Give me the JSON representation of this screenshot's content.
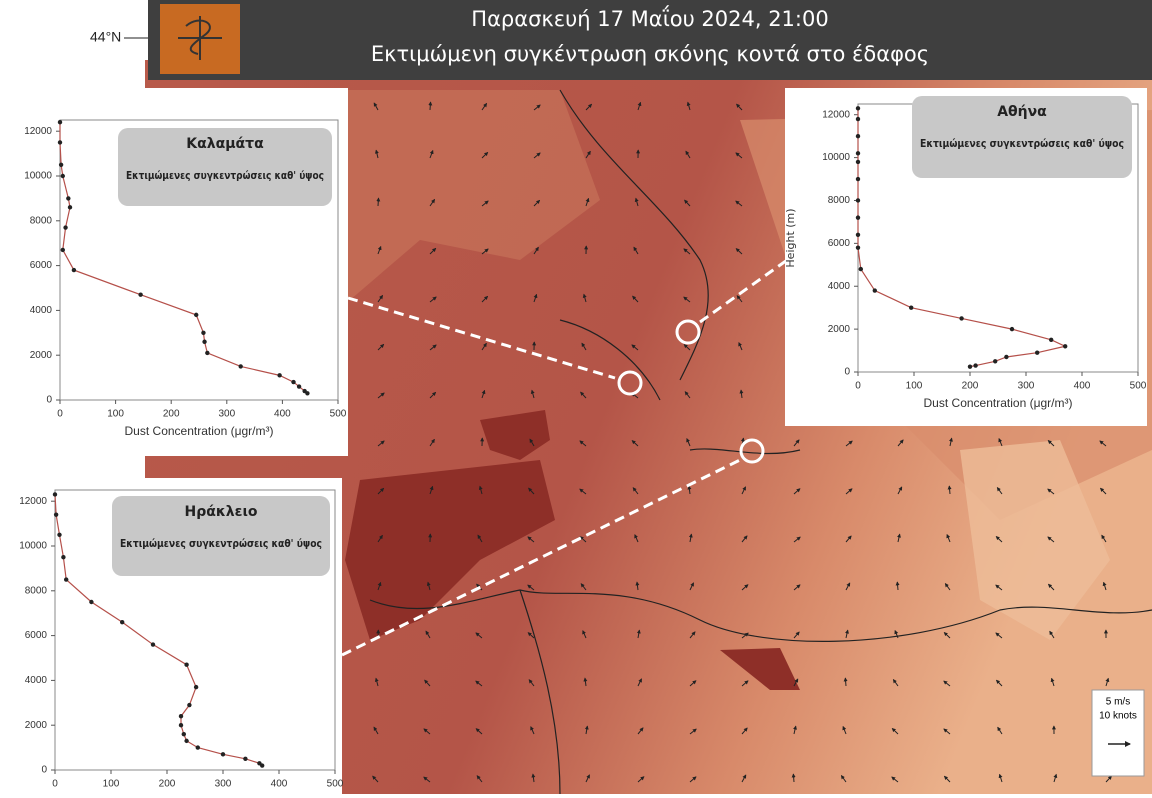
{
  "header": {
    "title": "Παρασκευή  17 Μαΐου  2024, 21:00",
    "subtitle": "Εκτιμώμενη συγκέντρωση σκόνης κοντά στο έδαφος"
  },
  "map": {
    "lat_label": "44°N",
    "wind_legend": [
      "5 m/s",
      "10 knots"
    ]
  },
  "chart_data": [
    {
      "type": "line",
      "title": "Καλαμάτα",
      "subtitle": "Εκτιμώμενες συγκεντρώσεις καθ' ύψος",
      "x_label": "Dust Concentration (μgr/m³)",
      "xlim": [
        0,
        500
      ],
      "xticks": [
        0,
        100,
        200,
        300,
        400,
        500
      ],
      "ylim": [
        0,
        12500
      ],
      "yticks": [
        0,
        2000,
        4000,
        6000,
        8000,
        10000,
        12000
      ],
      "series": [
        {
          "color": "#b5504a",
          "x": [
            0,
            0,
            2,
            5,
            15,
            18,
            10,
            5,
            25,
            145,
            245,
            258,
            260,
            265,
            325,
            395,
            420,
            430,
            440,
            445
          ],
          "values": [
            12400,
            11500,
            10500,
            10000,
            9000,
            8600,
            7700,
            6700,
            5800,
            4700,
            3800,
            3000,
            2600,
            2100,
            1500,
            1100,
            800,
            600,
            400,
            300
          ]
        }
      ]
    },
    {
      "type": "line",
      "title": "Αθήνα",
      "subtitle": "Εκτιμώμενες συγκεντρώσεις καθ' ύψος",
      "x_label": "Dust Concentration (μgr/m³)",
      "y_label": "Height (m)",
      "xlim": [
        0,
        500
      ],
      "xticks": [
        0,
        100,
        200,
        300,
        400,
        500
      ],
      "ylim": [
        0,
        12500
      ],
      "yticks": [
        0,
        2000,
        4000,
        6000,
        8000,
        10000,
        12000
      ],
      "series": [
        {
          "color": "#b5504a",
          "x": [
            0,
            0,
            0,
            0,
            0,
            0,
            0,
            0,
            0,
            0,
            5,
            30,
            95,
            185,
            275,
            345,
            370,
            320,
            265,
            245,
            210,
            200
          ],
          "values": [
            12300,
            11800,
            11000,
            10200,
            9800,
            9000,
            8000,
            7200,
            6400,
            5800,
            4800,
            3800,
            3000,
            2500,
            2000,
            1500,
            1200,
            900,
            700,
            500,
            300,
            250
          ]
        }
      ]
    },
    {
      "type": "line",
      "title": "Ηράκλειο",
      "subtitle": "Εκτιμώμενες συγκεντρώσεις καθ' ύψος",
      "xlim": [
        0,
        500
      ],
      "xticks": [
        0,
        100,
        200,
        300,
        400,
        500
      ],
      "ylim": [
        0,
        12500
      ],
      "yticks": [
        0,
        2000,
        4000,
        6000,
        8000,
        10000,
        12000
      ],
      "series": [
        {
          "color": "#b5504a",
          "x": [
            0,
            2,
            8,
            15,
            20,
            65,
            120,
            175,
            235,
            252,
            240,
            225,
            225,
            230,
            235,
            255,
            300,
            340,
            365,
            370
          ],
          "values": [
            12300,
            11400,
            10500,
            9500,
            8500,
            7500,
            6600,
            5600,
            4700,
            3700,
            2900,
            2400,
            2000,
            1600,
            1300,
            1000,
            700,
            500,
            300,
            200
          ]
        }
      ]
    }
  ]
}
